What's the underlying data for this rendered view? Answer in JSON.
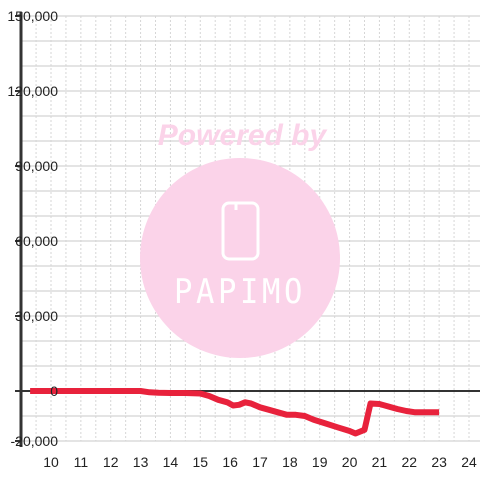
{
  "colors": {
    "line": "#e8223c",
    "axis": "#333333",
    "grid_major": "#c8c8c8",
    "grid_minor": "#d6d6d6",
    "watermark": "#fbd3e9",
    "watermark_text": "#ffffff"
  },
  "watermark": {
    "top_text": "Powered by",
    "brand": "PAPIMO",
    "icon": "phone-icon"
  },
  "chart_data": {
    "type": "line",
    "xlim": [
      9.3,
      24.3
    ],
    "ylim": [
      -22000,
      150000
    ],
    "x_ticks": [
      10,
      11,
      12,
      13,
      14,
      15,
      16,
      17,
      18,
      19,
      20,
      21,
      22,
      23,
      24
    ],
    "y_ticks": [
      -20000,
      0,
      30000,
      60000,
      90000,
      120000,
      150000
    ],
    "y_tick_labels": [
      "-20,000",
      "0",
      "30,000",
      "60,000",
      "90,000",
      "120,000",
      "150,000"
    ],
    "grid": true,
    "series": [
      {
        "x": [
          9.3,
          10,
          11,
          12,
          13,
          13.3,
          13.6,
          14,
          14.5,
          15,
          15.3,
          15.6,
          15.9,
          16.1,
          16.3,
          16.5,
          16.7,
          17,
          17.3,
          17.6,
          17.9,
          18.2,
          18.5,
          18.8,
          19.2,
          19.6,
          20.0,
          20.2,
          20.5,
          20.7,
          21.0,
          21.3,
          21.6,
          21.9,
          22.2,
          22.5,
          23.0
        ],
        "y": [
          0,
          0,
          0,
          0,
          0,
          -500,
          -700,
          -800,
          -800,
          -1000,
          -2000,
          -3500,
          -4500,
          -5800,
          -5500,
          -4500,
          -5000,
          -6500,
          -7500,
          -8500,
          -9500,
          -9500,
          -10000,
          -11500,
          -13000,
          -14500,
          -16000,
          -17000,
          -15500,
          -5000,
          -5200,
          -6200,
          -7200,
          -8000,
          -8500,
          -8500,
          -8500
        ]
      }
    ]
  }
}
